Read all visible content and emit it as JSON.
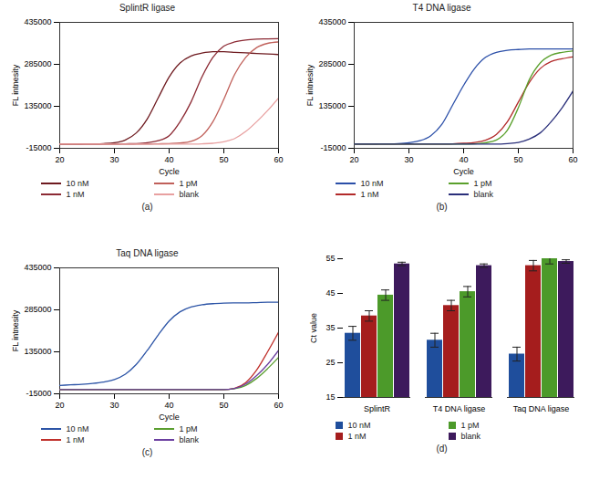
{
  "chart_data": [
    {
      "type": "line",
      "title": "SplintR ligase",
      "x_label": "Cycle",
      "y_label": "FL intnesity",
      "caption": "(a)",
      "legend": "bottom",
      "xlim": [
        20,
        60
      ],
      "xticks": [
        20,
        30,
        40,
        50,
        60
      ],
      "ylim": [
        -15000,
        435000
      ],
      "yticks": [
        -15000,
        135000,
        285000,
        435000
      ],
      "x": [
        20,
        22,
        24,
        26,
        28,
        30,
        32,
        34,
        36,
        38,
        40,
        42,
        44,
        46,
        48,
        50,
        52,
        54,
        56,
        58,
        60
      ],
      "series": [
        {
          "name": "10 nM",
          "color": "#6e1a1f",
          "values": [
            0,
            0,
            500,
            1000,
            2000,
            5000,
            15000,
            40000,
            90000,
            165000,
            240000,
            290000,
            315000,
            325000,
            330000,
            330000,
            328000,
            326000,
            324000,
            322000,
            320000
          ]
        },
        {
          "name": "1 nM",
          "color": "#8c2a34",
          "values": [
            0,
            0,
            0,
            0,
            0,
            0,
            1000,
            2000,
            5000,
            12000,
            30000,
            80000,
            150000,
            240000,
            310000,
            350000,
            365000,
            372000,
            375000,
            376000,
            377000
          ]
        },
        {
          "name": "1 pM",
          "color": "#c0605a",
          "values": [
            0,
            0,
            0,
            0,
            0,
            0,
            0,
            0,
            0,
            1000,
            2000,
            4000,
            10000,
            30000,
            80000,
            160000,
            250000,
            310000,
            345000,
            360000,
            365000
          ]
        },
        {
          "name": "blank",
          "color": "#e8a0a0",
          "values": [
            0,
            0,
            0,
            0,
            0,
            0,
            0,
            0,
            0,
            0,
            0,
            0,
            0,
            1000,
            3000,
            8000,
            20000,
            45000,
            80000,
            120000,
            165000
          ]
        }
      ]
    },
    {
      "type": "line",
      "title": "T4 DNA ligase",
      "x_label": "Cycle",
      "y_label": "FL intnesity",
      "caption": "(b)",
      "legend": "bottom",
      "xlim": [
        20,
        60
      ],
      "xticks": [
        20,
        30,
        40,
        50,
        60
      ],
      "ylim": [
        -15000,
        435000
      ],
      "yticks": [
        -15000,
        135000,
        285000,
        435000
      ],
      "x": [
        20,
        22,
        24,
        26,
        28,
        30,
        32,
        34,
        36,
        38,
        40,
        42,
        44,
        46,
        48,
        50,
        52,
        54,
        56,
        58,
        60
      ],
      "series": [
        {
          "name": "10 nM",
          "color": "#2b4fa8",
          "values": [
            0,
            0,
            500,
            1000,
            2000,
            5000,
            12000,
            30000,
            70000,
            140000,
            210000,
            270000,
            310000,
            328000,
            335000,
            338000,
            340000,
            340000,
            340000,
            340000,
            340000
          ]
        },
        {
          "name": "1 nM",
          "color": "#b22a2a",
          "values": [
            0,
            0,
            0,
            0,
            0,
            0,
            0,
            0,
            0,
            1000,
            3000,
            6000,
            14000,
            35000,
            80000,
            150000,
            220000,
            270000,
            295000,
            305000,
            312000
          ]
        },
        {
          "name": "1 pM",
          "color": "#5aa02c",
          "values": [
            0,
            0,
            0,
            0,
            0,
            0,
            0,
            0,
            0,
            0,
            0,
            1000,
            5000,
            15000,
            50000,
            130000,
            230000,
            290000,
            318000,
            328000,
            333000
          ]
        },
        {
          "name": "blank",
          "color": "#2a2f7a",
          "values": [
            0,
            0,
            0,
            0,
            0,
            0,
            0,
            0,
            0,
            0,
            0,
            0,
            0,
            0,
            2000,
            6000,
            18000,
            40000,
            80000,
            130000,
            190000
          ]
        }
      ]
    },
    {
      "type": "line",
      "title": "Taq DNA ligase",
      "x_label": "Cycle",
      "y_label": "FL intnesity",
      "caption": "(c)",
      "legend": "bottom",
      "xlim": [
        20,
        60
      ],
      "xticks": [
        20,
        30,
        40,
        50,
        60
      ],
      "ylim": [
        -15000,
        435000
      ],
      "yticks": [
        -15000,
        135000,
        285000,
        435000
      ],
      "x": [
        20,
        22,
        24,
        26,
        28,
        30,
        32,
        34,
        36,
        38,
        40,
        42,
        44,
        46,
        48,
        50,
        52,
        54,
        56,
        58,
        60
      ],
      "series": [
        {
          "name": "10 nM",
          "color": "#2c54a6",
          "values": [
            15000,
            17000,
            19000,
            22000,
            27000,
            36000,
            55000,
            90000,
            140000,
            195000,
            245000,
            278000,
            295000,
            303000,
            307000,
            309000,
            310000,
            310000,
            311000,
            312000,
            312000
          ]
        },
        {
          "name": "1 nM",
          "color": "#c0302b",
          "values": [
            0,
            0,
            0,
            0,
            0,
            0,
            0,
            0,
            0,
            0,
            0,
            0,
            0,
            0,
            0,
            0,
            5000,
            25000,
            70000,
            135000,
            205000
          ]
        },
        {
          "name": "1 pM",
          "color": "#5a9e2f",
          "values": [
            0,
            0,
            0,
            0,
            0,
            0,
            0,
            0,
            0,
            0,
            0,
            0,
            0,
            0,
            0,
            0,
            3000,
            15000,
            40000,
            75000,
            115000
          ]
        },
        {
          "name": "blank",
          "color": "#6b3fa0",
          "values": [
            0,
            0,
            0,
            0,
            0,
            0,
            0,
            0,
            0,
            0,
            0,
            0,
            0,
            0,
            0,
            0,
            4000,
            20000,
            50000,
            90000,
            140000
          ]
        }
      ]
    },
    {
      "type": "bar",
      "y_label": "Ct value",
      "caption": "(d)",
      "legend": "bottom",
      "ylim": [
        15,
        55
      ],
      "yticks": [
        15,
        25,
        35,
        45,
        55
      ],
      "categories": [
        "SplintR",
        "T4 DNA ligase",
        "Taq DNA ligase"
      ],
      "series": [
        {
          "name": "10 nM",
          "color": "#1f4e9c",
          "values": [
            33.5,
            31.5,
            27.5
          ],
          "errors": [
            2,
            2,
            2
          ]
        },
        {
          "name": "1 nM",
          "color": "#a51d1d",
          "values": [
            38.5,
            41.5,
            53
          ],
          "errors": [
            1.5,
            1.5,
            1.5
          ]
        },
        {
          "name": "1 pM",
          "color": "#4c9a2a",
          "values": [
            44.5,
            45.5,
            55
          ],
          "errors": [
            1.5,
            1.5,
            1.5
          ]
        },
        {
          "name": "blank",
          "color": "#3d1a5c",
          "values": [
            53.5,
            53,
            54.2
          ],
          "errors": [
            0.5,
            0.5,
            0.5
          ]
        }
      ]
    }
  ]
}
